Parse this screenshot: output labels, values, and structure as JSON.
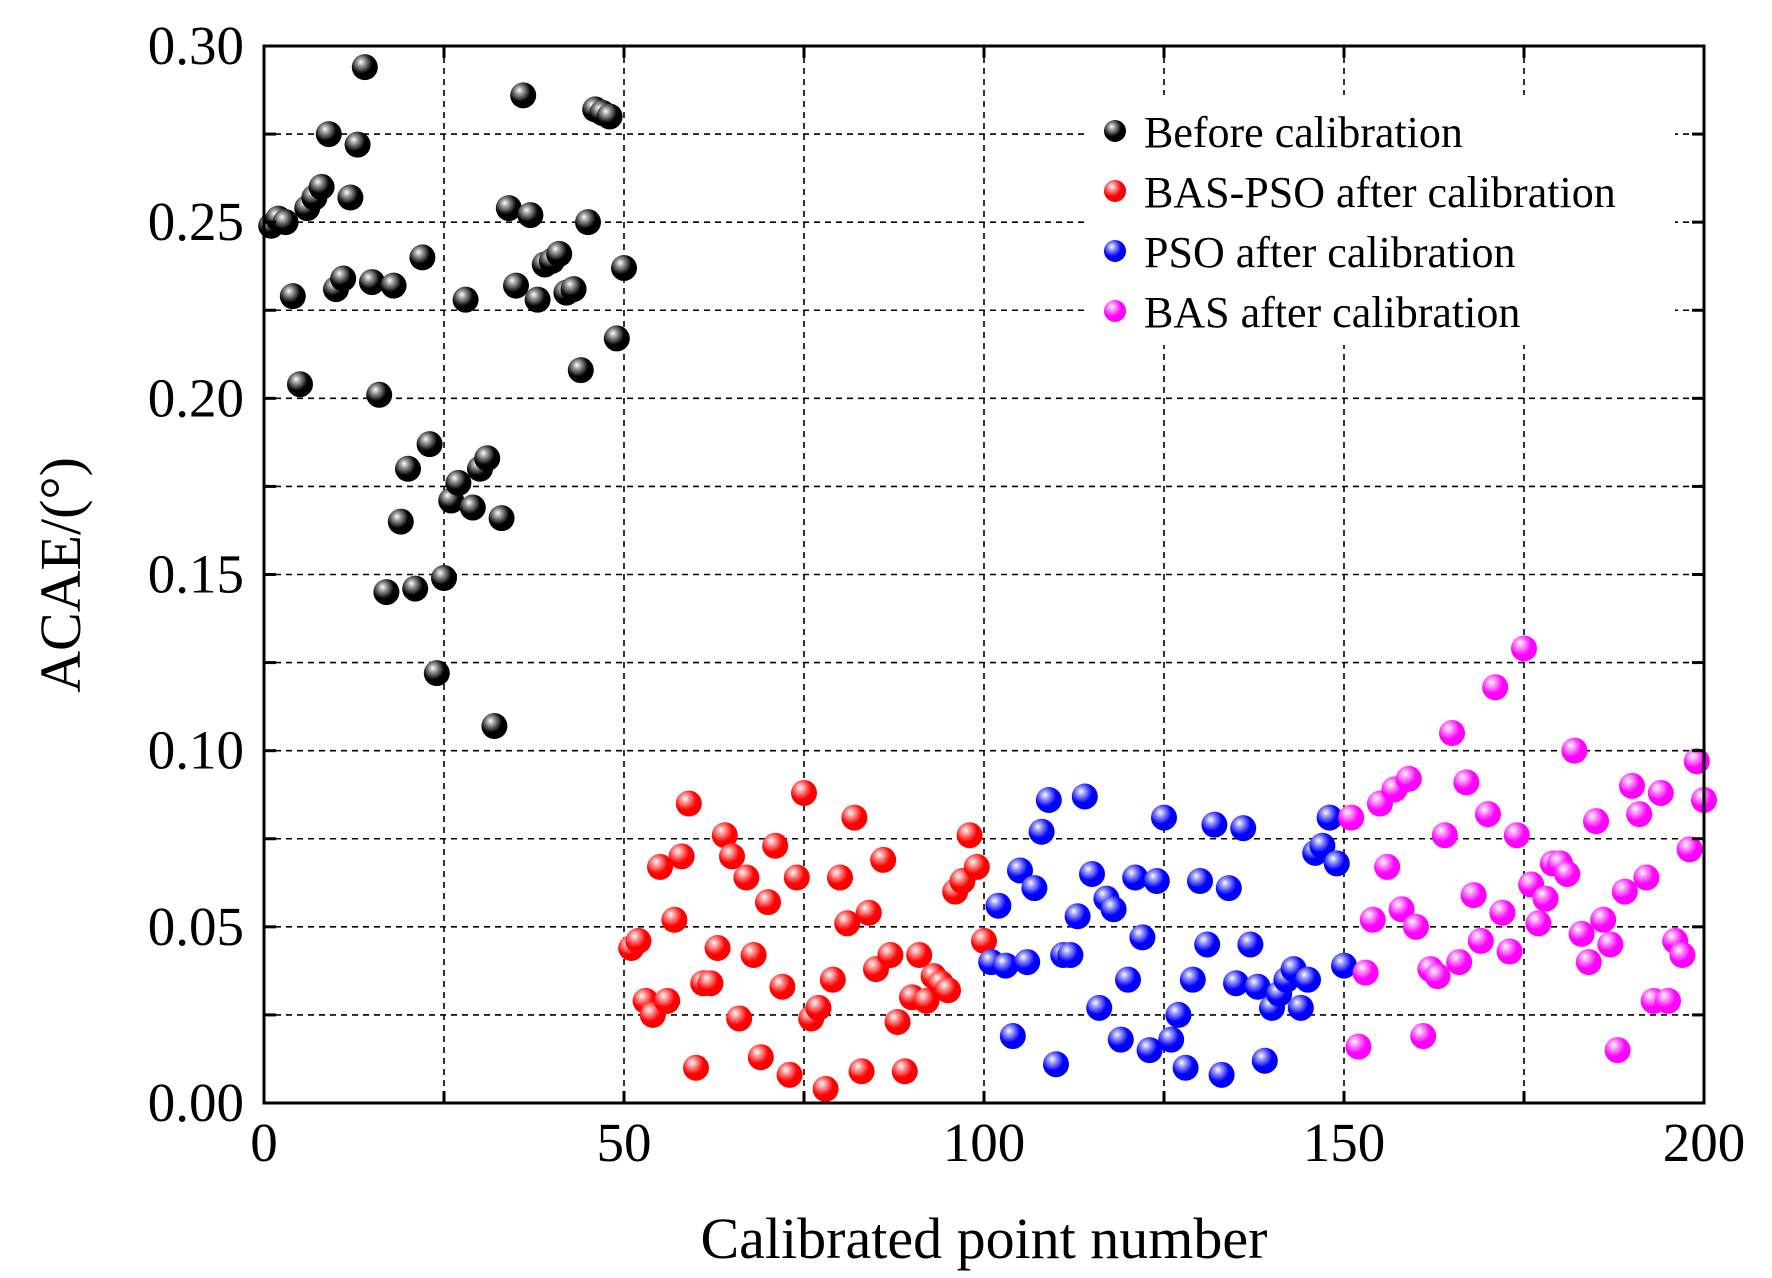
{
  "chart_data": {
    "type": "scatter",
    "xlabel": "Calibrated point number",
    "ylabel": "ACAE/(°)",
    "xlim": [
      0,
      200
    ],
    "ylim": [
      0.0,
      0.3
    ],
    "x_ticks": [
      0,
      50,
      100,
      150,
      200
    ],
    "x_tick_labels": [
      "0",
      "50",
      "100",
      "150",
      "200"
    ],
    "y_ticks": [
      0.0,
      0.05,
      0.1,
      0.15,
      0.2,
      0.25,
      0.3
    ],
    "y_tick_labels": [
      "0.00",
      "0.05",
      "0.10",
      "0.15",
      "0.20",
      "0.25",
      "0.30"
    ],
    "grid": true,
    "legend_position": "top-right",
    "series": [
      {
        "name": "Before calibration",
        "color": "#000000",
        "highlight": "#9a9a9a",
        "x": [
          1,
          2,
          3,
          4,
          5,
          6,
          7,
          8,
          9,
          10,
          11,
          12,
          13,
          14,
          15,
          16,
          17,
          18,
          19,
          20,
          21,
          22,
          23,
          24,
          25,
          26,
          27,
          28,
          29,
          30,
          31,
          32,
          33,
          34,
          35,
          36,
          37,
          38,
          39,
          40,
          41,
          42,
          43,
          44,
          45,
          46,
          47,
          48,
          49,
          50
        ],
        "y": [
          0.249,
          0.251,
          0.25,
          0.229,
          0.204,
          0.254,
          0.257,
          0.26,
          0.275,
          0.231,
          0.234,
          0.257,
          0.272,
          0.294,
          0.233,
          0.201,
          0.145,
          0.232,
          0.165,
          0.18,
          0.146,
          0.24,
          0.187,
          0.122,
          0.149,
          0.171,
          0.176,
          0.228,
          0.169,
          0.18,
          0.183,
          0.107,
          0.166,
          0.254,
          0.232,
          0.286,
          0.252,
          0.228,
          0.238,
          0.239,
          0.241,
          0.23,
          0.231,
          0.208,
          0.25,
          0.282,
          0.281,
          0.28,
          0.217,
          0.237
        ]
      },
      {
        "name": "BAS-PSO after calibration",
        "color": "#ff0000",
        "highlight": "#ff9a9a",
        "x": [
          51,
          52,
          53,
          54,
          55,
          56,
          57,
          58,
          59,
          60,
          61,
          62,
          63,
          64,
          65,
          66,
          67,
          68,
          69,
          70,
          71,
          72,
          73,
          74,
          75,
          76,
          77,
          78,
          79,
          80,
          81,
          82,
          83,
          84,
          85,
          86,
          87,
          88,
          89,
          90,
          91,
          92,
          93,
          94,
          95,
          96,
          97,
          98,
          99,
          100
        ],
        "y": [
          0.044,
          0.046,
          0.029,
          0.025,
          0.067,
          0.029,
          0.052,
          0.07,
          0.085,
          0.01,
          0.034,
          0.034,
          0.044,
          0.076,
          0.07,
          0.024,
          0.064,
          0.042,
          0.013,
          0.057,
          0.073,
          0.033,
          0.008,
          0.064,
          0.088,
          0.024,
          0.027,
          0.004,
          0.035,
          0.064,
          0.051,
          0.081,
          0.009,
          0.054,
          0.038,
          0.069,
          0.042,
          0.023,
          0.009,
          0.03,
          0.042,
          0.029,
          0.036,
          0.034,
          0.032,
          0.06,
          0.063,
          0.076,
          0.067,
          0.046
        ]
      },
      {
        "name": "PSO after calibration",
        "color": "#0000ff",
        "highlight": "#9a9aff",
        "x": [
          101,
          102,
          103,
          104,
          105,
          106,
          107,
          108,
          109,
          110,
          111,
          112,
          113,
          114,
          115,
          116,
          117,
          118,
          119,
          120,
          121,
          122,
          123,
          124,
          125,
          126,
          127,
          128,
          129,
          130,
          131,
          132,
          133,
          134,
          135,
          136,
          137,
          138,
          139,
          140,
          141,
          142,
          143,
          144,
          145,
          146,
          147,
          148,
          149,
          150
        ],
        "y": [
          0.04,
          0.056,
          0.039,
          0.019,
          0.066,
          0.04,
          0.061,
          0.077,
          0.086,
          0.011,
          0.042,
          0.042,
          0.053,
          0.087,
          0.065,
          0.027,
          0.058,
          0.055,
          0.018,
          0.035,
          0.064,
          0.047,
          0.015,
          0.063,
          0.081,
          0.018,
          0.025,
          0.01,
          0.035,
          0.063,
          0.045,
          0.079,
          0.008,
          0.061,
          0.034,
          0.078,
          0.045,
          0.033,
          0.012,
          0.027,
          0.031,
          0.035,
          0.038,
          0.027,
          0.035,
          0.071,
          0.073,
          0.081,
          0.068,
          0.039
        ]
      },
      {
        "name": "BAS after calibration",
        "color": "#ff00ff",
        "highlight": "#ff9aff",
        "x": [
          151,
          152,
          153,
          154,
          155,
          156,
          157,
          158,
          159,
          160,
          161,
          162,
          163,
          164,
          165,
          166,
          167,
          168,
          169,
          170,
          171,
          172,
          173,
          174,
          175,
          176,
          177,
          178,
          179,
          180,
          181,
          182,
          183,
          184,
          185,
          186,
          187,
          188,
          189,
          190,
          191,
          192,
          193,
          194,
          195,
          196,
          197,
          198,
          199,
          200
        ],
        "y": [
          0.081,
          0.016,
          0.037,
          0.052,
          0.085,
          0.067,
          0.089,
          0.055,
          0.092,
          0.05,
          0.019,
          0.038,
          0.036,
          0.076,
          0.105,
          0.04,
          0.091,
          0.059,
          0.046,
          0.082,
          0.118,
          0.054,
          0.043,
          0.076,
          0.129,
          0.062,
          0.051,
          0.058,
          0.068,
          0.068,
          0.065,
          0.1,
          0.048,
          0.04,
          0.08,
          0.052,
          0.045,
          0.015,
          0.06,
          0.09,
          0.082,
          0.064,
          0.029,
          0.088,
          0.029,
          0.046,
          0.042,
          0.072,
          0.097,
          0.086
        ]
      }
    ]
  }
}
